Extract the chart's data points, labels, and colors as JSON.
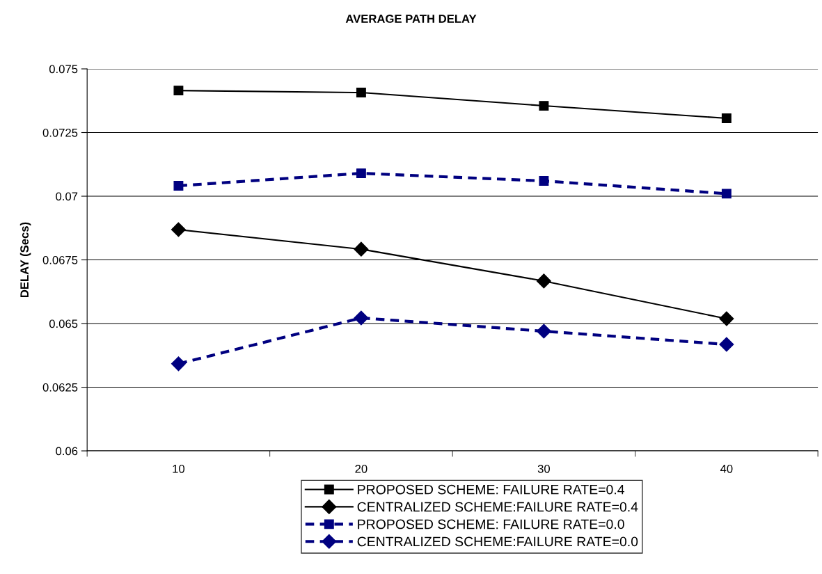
{
  "chart_data": {
    "type": "line",
    "title": "AVERAGE PATH DELAY",
    "ylabel": "DELAY (Secs)",
    "categories": [
      "10",
      "20",
      "30",
      "40"
    ],
    "series": [
      {
        "name": "PROPOSED SCHEME: FAILURE RATE=0.4",
        "color": "#000000",
        "marker": "square",
        "line_style": "solid",
        "values": [
          0.07415,
          0.07407,
          0.07355,
          0.07306
        ]
      },
      {
        "name": "CENTRALIZED SCHEME:FAILURE RATE=0.4",
        "color": "#000000",
        "marker": "diamond",
        "line_style": "solid",
        "values": [
          0.06869,
          0.06792,
          0.06667,
          0.06519
        ]
      },
      {
        "name": "PROPOSED SCHEME: FAILURE RATE=0.0",
        "color": "#000080",
        "marker": "square",
        "line_style": "dashed",
        "values": [
          0.07041,
          0.0709,
          0.0706,
          0.0701
        ]
      },
      {
        "name": "CENTRALIZED SCHEME:FAILURE RATE=0.0",
        "color": "#000080",
        "marker": "diamond",
        "line_style": "dashed",
        "values": [
          0.06342,
          0.06522,
          0.0647,
          0.06418
        ]
      }
    ],
    "ylim": [
      0.06,
      0.075
    ],
    "yticks": [
      0.06,
      0.0625,
      0.065,
      0.0675,
      0.07,
      0.0725,
      0.075
    ],
    "grid": "y",
    "legend": "bottom"
  }
}
